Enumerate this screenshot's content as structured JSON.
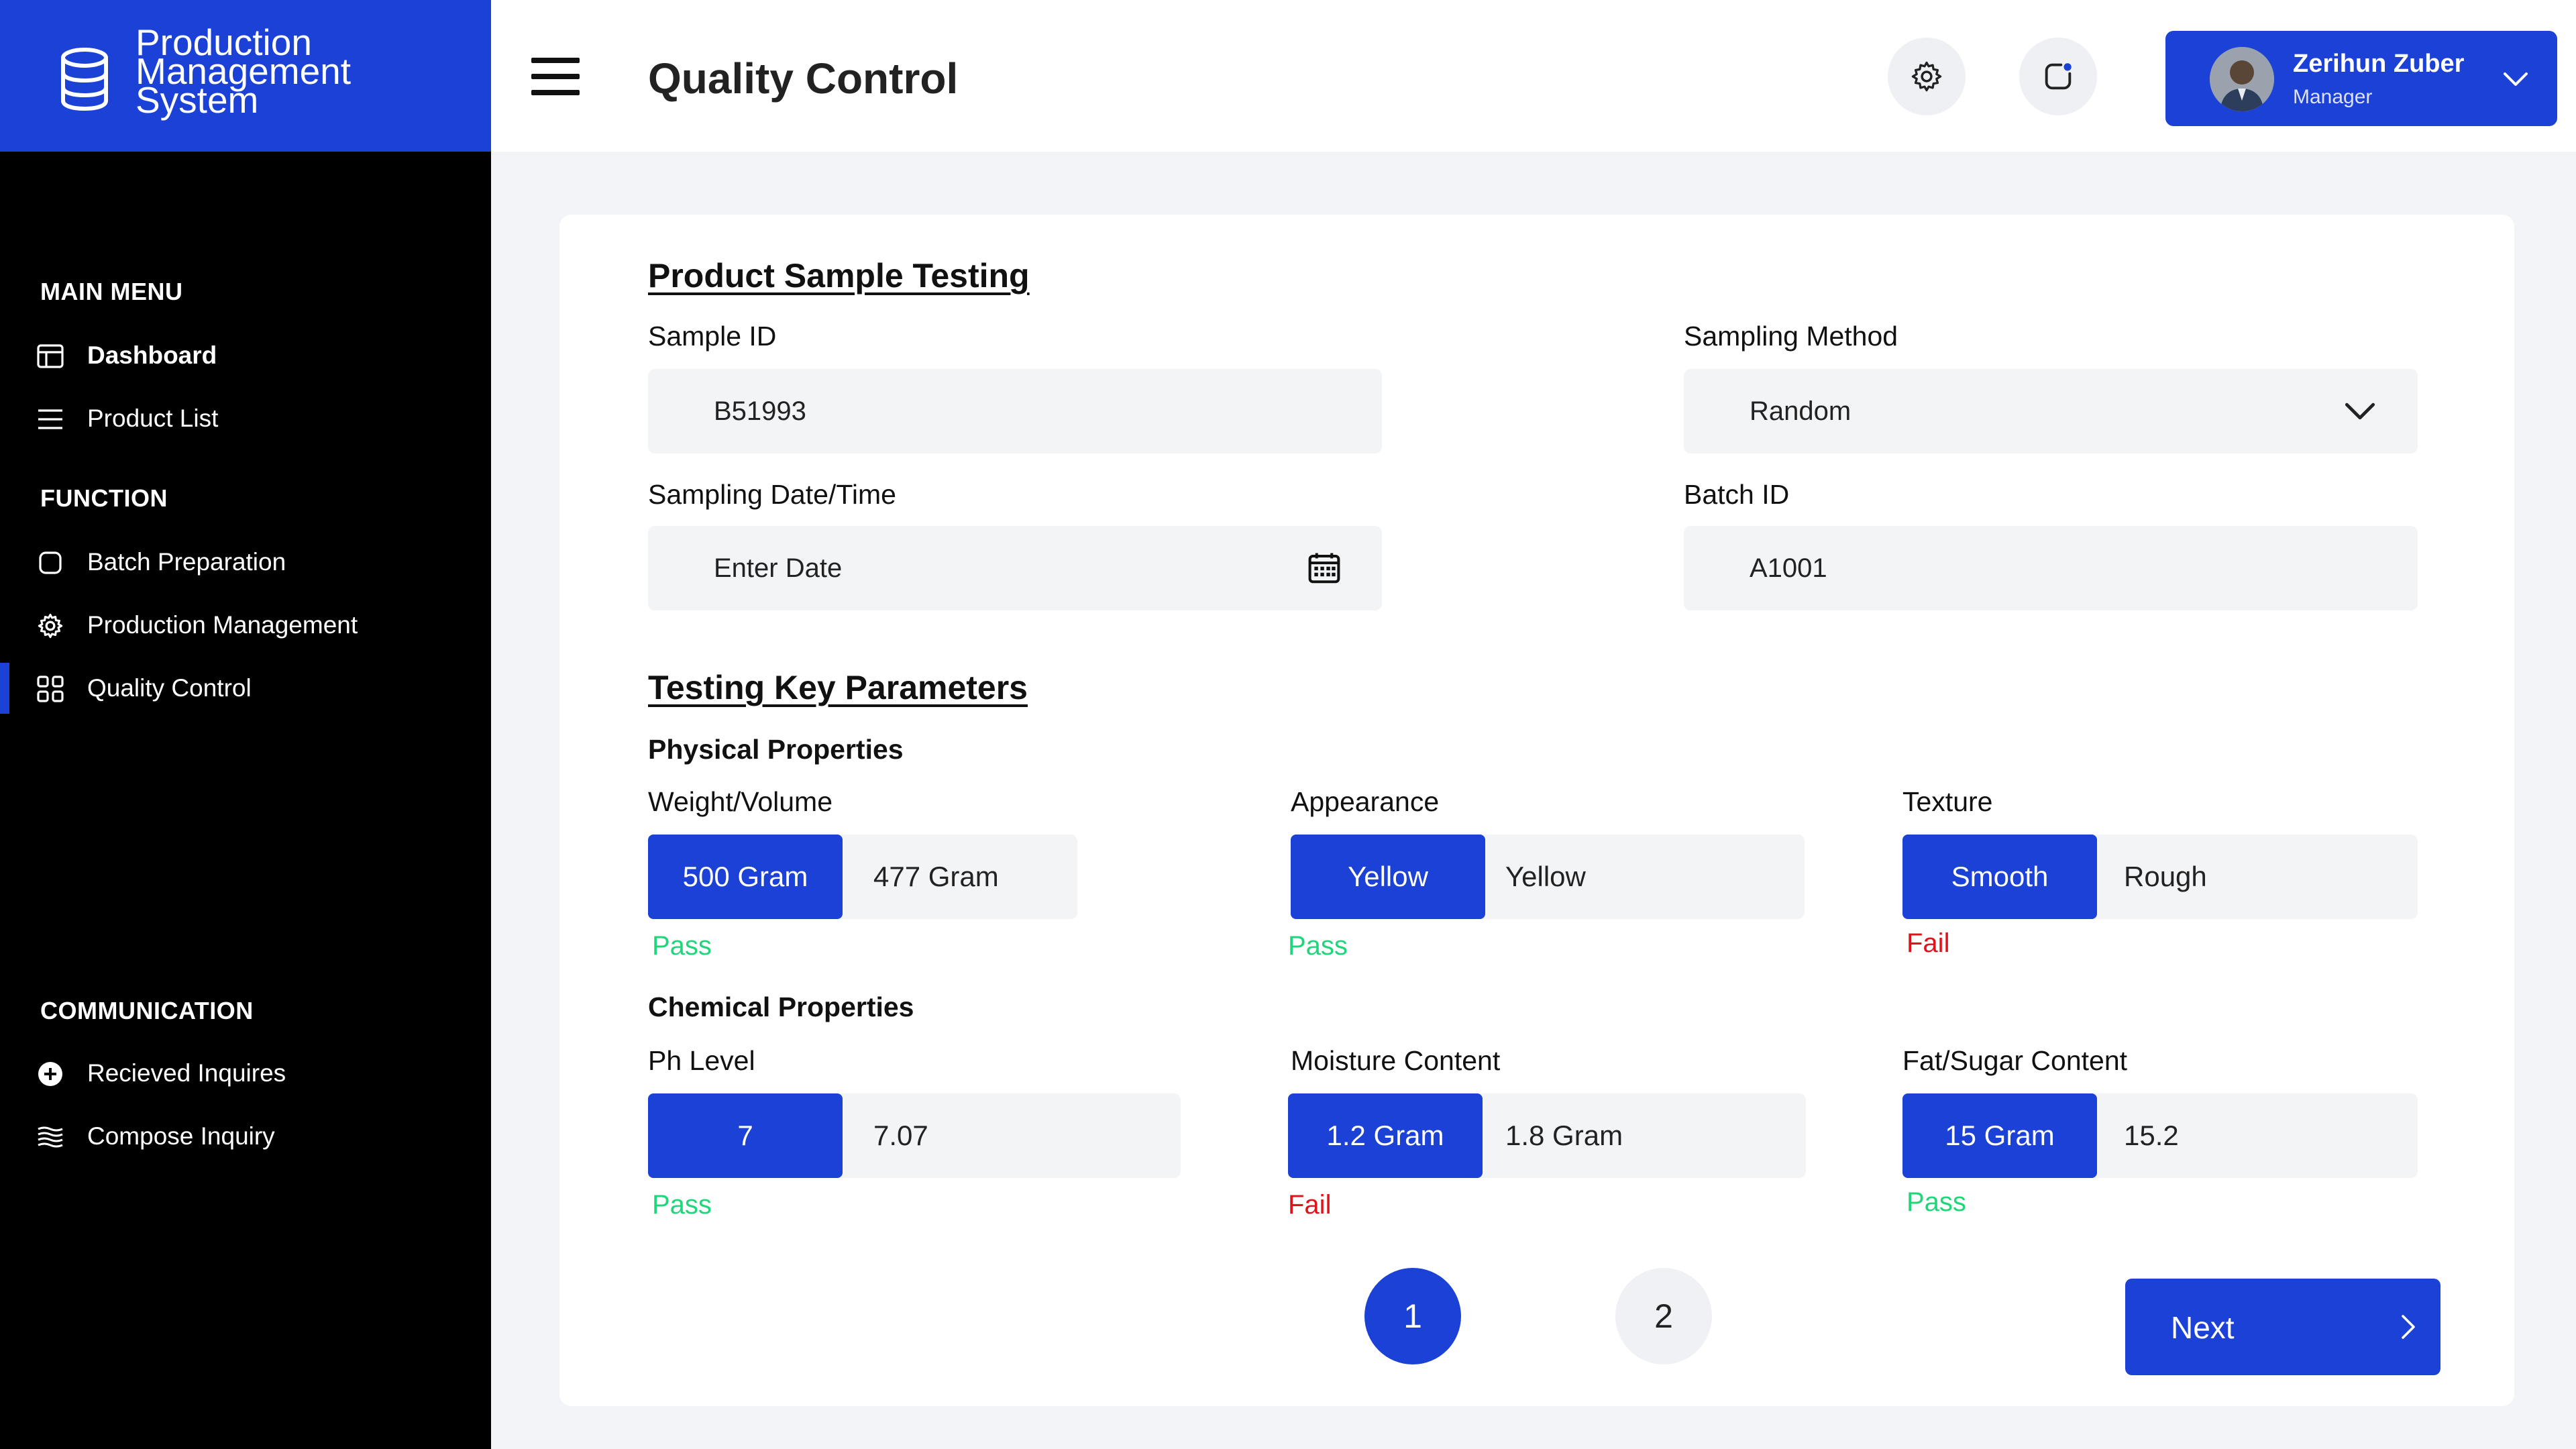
{
  "app": {
    "name": "Production Management System",
    "name_lines": [
      "Production",
      "Management",
      "System"
    ]
  },
  "sidebar": {
    "sections": {
      "main_menu": "MAIN MENU",
      "function": "FUNCTION",
      "communication": "COMMUNICATION"
    },
    "items": [
      {
        "label": "Dashboard",
        "icon": "dashboard-icon"
      },
      {
        "label": "Product List",
        "icon": "list-icon"
      },
      {
        "label": "Batch Preparation",
        "icon": "square-icon"
      },
      {
        "label": "Production Management",
        "icon": "gear-icon"
      },
      {
        "label": "Quality Control",
        "icon": "grid-icon",
        "active": true
      },
      {
        "label": "Recieved Inquires",
        "icon": "plus-circle-icon"
      },
      {
        "label": "Compose Inquiry",
        "icon": "waves-icon"
      }
    ]
  },
  "header": {
    "title": "Quality Control",
    "user": {
      "name": "Zerihun Zuber",
      "role": "Manager"
    }
  },
  "sample_testing": {
    "title": "Product Sample Testing",
    "sample_id": {
      "label": "Sample ID",
      "value": "B51993"
    },
    "sampling_method": {
      "label": "Sampling Method",
      "value": "Random"
    },
    "sampling_date": {
      "label": "Sampling Date/Time",
      "placeholder": "Enter Date"
    },
    "batch_id": {
      "label": "Batch ID",
      "value": "A1001"
    }
  },
  "parameters": {
    "title": "Testing Key Parameters",
    "physical": {
      "title": "Physical Properties",
      "items": [
        {
          "label": "Weight/Volume",
          "standard": "500 Gram",
          "measured": "477 Gram",
          "result": "Pass"
        },
        {
          "label": "Appearance",
          "standard": "Yellow",
          "measured": "Yellow",
          "result": "Pass"
        },
        {
          "label": "Texture",
          "standard": "Smooth",
          "measured": "Rough",
          "result": "Fail"
        }
      ]
    },
    "chemical": {
      "title": "Chemical Properties",
      "items": [
        {
          "label": "Ph Level",
          "standard": "7",
          "measured": "7.07",
          "result": "Pass"
        },
        {
          "label": "Moisture Content",
          "standard": "1.2 Gram",
          "measured": "1.8 Gram",
          "result": "Fail"
        },
        {
          "label": "Fat/Sugar Content",
          "standard": "15 Gram",
          "measured": "15.2",
          "result": "Pass"
        }
      ]
    }
  },
  "pagination": {
    "pages": [
      "1",
      "2"
    ],
    "current": "1"
  },
  "actions": {
    "next_label": "Next"
  },
  "colors": {
    "accent": "#1b41d6",
    "pass": "#1fd67a",
    "fail": "#e0121a",
    "sidebar_bg": "#000000"
  }
}
